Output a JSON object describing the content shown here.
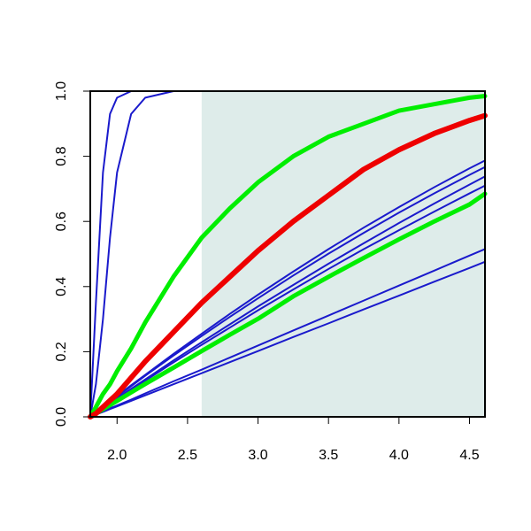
{
  "chart_data": {
    "type": "line",
    "x": [
      1.81,
      1.85,
      1.9,
      1.95,
      2.0,
      2.1,
      2.2,
      2.4,
      2.6,
      2.8,
      3.0,
      3.25,
      3.5,
      3.75,
      4.0,
      4.25,
      4.5,
      4.61
    ],
    "xlim": [
      1.81,
      4.61
    ],
    "xticks": [
      {
        "value": 2,
        "label": "2.0"
      },
      2.5,
      {
        "value": 3,
        "label": "3.0"
      },
      3.5,
      {
        "value": 4,
        "label": "4.0"
      },
      4.5
    ],
    "ylim": [
      0,
      1
    ],
    "yticks": [
      {
        "value": 0,
        "label": "0.0"
      },
      0.2,
      0.4,
      0.6,
      0.8,
      {
        "value": 1,
        "label": "1.0"
      }
    ],
    "shade_from": 2.6,
    "shade_color": "#deecea",
    "series": [
      {
        "color": "#1a1acc",
        "width": 2,
        "values": [
          0,
          0.35,
          0.75,
          0.93,
          0.98,
          1,
          1,
          1,
          1,
          1,
          1,
          1,
          1,
          1,
          1,
          1,
          1,
          1
        ]
      },
      {
        "color": "#1a1acc",
        "width": 2,
        "values": [
          0,
          0.1,
          0.3,
          0.55,
          0.75,
          0.93,
          0.98,
          1,
          1,
          1,
          1,
          1,
          1,
          1,
          1,
          1,
          1,
          1
        ]
      },
      {
        "color": "#1a1acc",
        "width": 2,
        "values": [
          0,
          0.014,
          0.03,
          0.047,
          0.064,
          0.097,
          0.129,
          0.193,
          0.255,
          0.316,
          0.375,
          0.446,
          0.515,
          0.581,
          0.644,
          0.705,
          0.763,
          0.787
        ]
      },
      {
        "color": "#1a1acc",
        "width": 2,
        "values": [
          0,
          0.013,
          0.03,
          0.046,
          0.062,
          0.094,
          0.126,
          0.188,
          0.248,
          0.307,
          0.364,
          0.434,
          0.501,
          0.565,
          0.627,
          0.686,
          0.743,
          0.767
        ]
      },
      {
        "color": "#1a1acc",
        "width": 2,
        "values": [
          0,
          0.012,
          0.027,
          0.042,
          0.057,
          0.086,
          0.115,
          0.173,
          0.229,
          0.284,
          0.339,
          0.405,
          0.47,
          0.533,
          0.595,
          0.655,
          0.713,
          0.738
        ]
      },
      {
        "color": "#1a1acc",
        "width": 2,
        "values": [
          0,
          0.012,
          0.026,
          0.04,
          0.055,
          0.083,
          0.111,
          0.167,
          0.221,
          0.274,
          0.327,
          0.391,
          0.454,
          0.515,
          0.573,
          0.63,
          0.686,
          0.71
        ]
      },
      {
        "color": "#1a1acc",
        "width": 2,
        "values": [
          0,
          0.007,
          0.017,
          0.026,
          0.035,
          0.053,
          0.072,
          0.109,
          0.145,
          0.182,
          0.219,
          0.265,
          0.311,
          0.357,
          0.403,
          0.449,
          0.495,
          0.515
        ]
      },
      {
        "color": "#1a1acc",
        "width": 2,
        "values": [
          0,
          0.007,
          0.015,
          0.024,
          0.032,
          0.049,
          0.066,
          0.1,
          0.134,
          0.168,
          0.202,
          0.245,
          0.287,
          0.33,
          0.372,
          0.415,
          0.457,
          0.476
        ]
      },
      {
        "color": "#00ee00",
        "width": 5,
        "values": [
          0,
          0.03,
          0.07,
          0.1,
          0.14,
          0.21,
          0.29,
          0.43,
          0.55,
          0.64,
          0.72,
          0.8,
          0.86,
          0.9,
          0.94,
          0.96,
          0.98,
          0.985
        ]
      },
      {
        "color": "#00ee00",
        "width": 5,
        "values": [
          0,
          0.01,
          0.023,
          0.036,
          0.049,
          0.075,
          0.101,
          0.151,
          0.202,
          0.252,
          0.301,
          0.37,
          0.43,
          0.488,
          0.545,
          0.6,
          0.652,
          0.685
        ]
      },
      {
        "color": "#ee0000",
        "width": 6,
        "values": [
          0,
          0.01,
          0.03,
          0.05,
          0.07,
          0.12,
          0.17,
          0.26,
          0.35,
          0.43,
          0.51,
          0.6,
          0.68,
          0.76,
          0.82,
          0.87,
          0.91,
          0.925
        ]
      }
    ]
  }
}
